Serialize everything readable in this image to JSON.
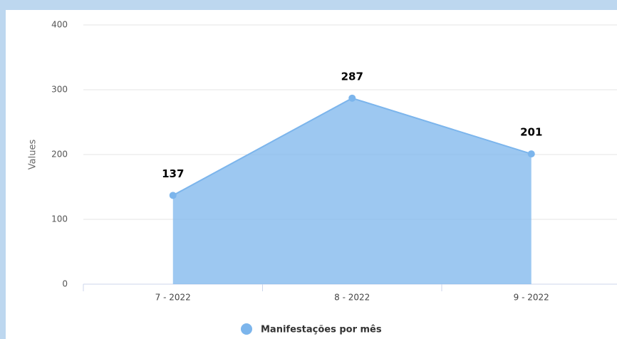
{
  "chart_data": {
    "type": "area",
    "y_label": "Values",
    "categories": [
      "7 - 2022",
      "8 - 2022",
      "9 - 2022"
    ],
    "series": [
      {
        "name": "Manifestações por mês",
        "color": "#7cb5ec",
        "values": [
          137,
          287,
          201
        ]
      }
    ],
    "ylim": [
      0,
      400
    ],
    "yticks": [
      0,
      100,
      200,
      300,
      400
    ],
    "grid": true,
    "legend": "bottom"
  }
}
